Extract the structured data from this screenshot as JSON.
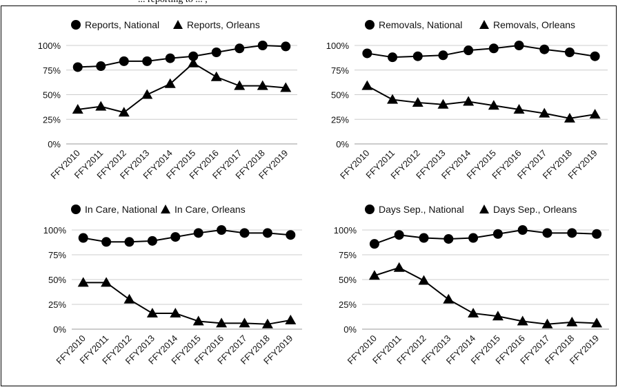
{
  "header": {
    "caption_fragment": "... reporting to ... ,"
  },
  "colors": {
    "series": "#000000",
    "grid": "#cccccc",
    "axis": "#999999"
  },
  "chart_data": [
    {
      "type": "line",
      "categories": [
        "FFY2010",
        "FFY2011",
        "FFY2012",
        "FFY2013",
        "FFY2014",
        "FFY2015",
        "FFY2016",
        "FFY2017",
        "FFY2018",
        "FFY2019"
      ],
      "yticks": [
        "0%",
        "25%",
        "50%",
        "75%",
        "100%"
      ],
      "ylim": [
        0,
        100
      ],
      "grid": true,
      "legend": "top",
      "series": [
        {
          "name": "Reports, National",
          "marker": "circle",
          "values": [
            78,
            79,
            84,
            84,
            87,
            89,
            93,
            97,
            100,
            99
          ]
        },
        {
          "name": "Reports, Orleans",
          "marker": "triangle",
          "values": [
            35,
            38,
            32,
            50,
            61,
            82,
            68,
            59,
            59,
            57
          ]
        }
      ]
    },
    {
      "type": "line",
      "categories": [
        "FFY2010",
        "FFY2011",
        "FFY2012",
        "FFY2013",
        "FFY2014",
        "FFY2015",
        "FFY2016",
        "FFY2017",
        "FFY2018",
        "FFY2019"
      ],
      "yticks": [
        "0%",
        "25%",
        "50%",
        "75%",
        "100%"
      ],
      "ylim": [
        0,
        100
      ],
      "grid": true,
      "legend": "top",
      "series": [
        {
          "name": "Removals, National",
          "marker": "circle",
          "values": [
            92,
            88,
            89,
            90,
            95,
            97,
            100,
            96,
            93,
            89
          ]
        },
        {
          "name": "Removals, Orleans",
          "marker": "triangle",
          "values": [
            59,
            45,
            42,
            40,
            43,
            39,
            35,
            31,
            26,
            30
          ]
        }
      ]
    },
    {
      "type": "line",
      "categories": [
        "FFY2010",
        "FFY2011",
        "FFY2012",
        "FFY2013",
        "FFY2014",
        "FFY2015",
        "FFY2016",
        "FFY2017",
        "FFY2018",
        "FFY2019"
      ],
      "yticks": [
        "0%",
        "25%",
        "50%",
        "75%",
        "100%"
      ],
      "ylim": [
        0,
        100
      ],
      "grid": true,
      "legend": "top",
      "series": [
        {
          "name": "In Care, National",
          "marker": "circle",
          "values": [
            92,
            88,
            88,
            89,
            93,
            97,
            100,
            97,
            97,
            95
          ]
        },
        {
          "name": "In Care, Orleans",
          "marker": "triangle",
          "values": [
            47,
            47,
            30,
            16,
            16,
            8,
            6,
            6,
            5,
            9
          ]
        }
      ]
    },
    {
      "type": "line",
      "categories": [
        "FFY2010",
        "FFY2011",
        "FFY2012",
        "FFY2013",
        "FFY2014",
        "FFY2015",
        "FFY2016",
        "FFY2017",
        "FFY2018",
        "FFY2019"
      ],
      "yticks": [
        "0%",
        "25%",
        "50%",
        "75%",
        "100%"
      ],
      "ylim": [
        0,
        100
      ],
      "grid": true,
      "legend": "top",
      "series": [
        {
          "name": "Days Sep., National",
          "marker": "circle",
          "values": [
            86,
            95,
            92,
            91,
            92,
            96,
            100,
            97,
            97,
            96
          ]
        },
        {
          "name": "Days Sep., Orleans",
          "marker": "triangle",
          "values": [
            54,
            62,
            49,
            30,
            16,
            13,
            8,
            5,
            7,
            6
          ]
        }
      ]
    }
  ]
}
